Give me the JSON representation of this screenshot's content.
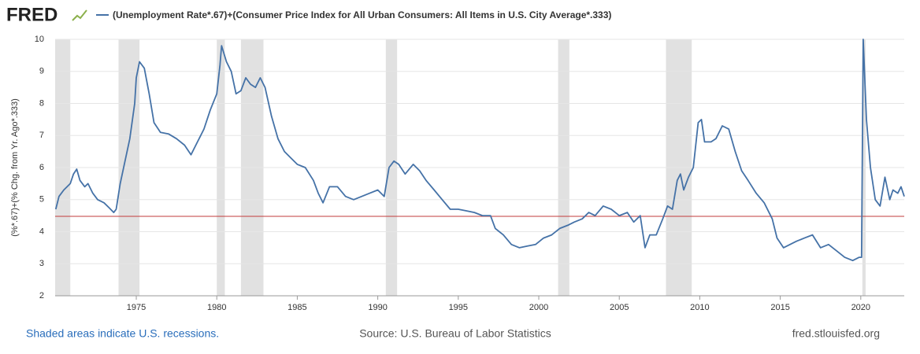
{
  "brand": "FRED",
  "chart_data": {
    "type": "line",
    "series": [
      {
        "name": "(Unemployment Rate*.67)+(Consumer Price Index for All Urban Consumers: All Items in U.S. City Average*.333)",
        "color": "#4572a7",
        "x": [
          1970.0,
          1970.2,
          1970.5,
          1970.9,
          1971.1,
          1971.3,
          1971.5,
          1971.8,
          1972.0,
          1972.3,
          1972.6,
          1973.0,
          1973.3,
          1973.6,
          1973.75,
          1974.0,
          1974.3,
          1974.6,
          1974.9,
          1975.0,
          1975.2,
          1975.5,
          1975.8,
          1976.1,
          1976.5,
          1977.0,
          1977.5,
          1978.0,
          1978.4,
          1978.8,
          1979.2,
          1979.6,
          1980.0,
          1980.2,
          1980.3,
          1980.6,
          1980.9,
          1981.2,
          1981.5,
          1981.8,
          1982.1,
          1982.4,
          1982.7,
          1983.0,
          1983.4,
          1983.8,
          1984.2,
          1984.6,
          1985.0,
          1985.5,
          1986.0,
          1986.3,
          1986.6,
          1987.0,
          1987.5,
          1988.0,
          1988.5,
          1989.0,
          1989.5,
          1990.0,
          1990.4,
          1990.7,
          1991.0,
          1991.3,
          1991.7,
          1992.2,
          1992.6,
          1993.0,
          1993.5,
          1994.0,
          1994.5,
          1995.0,
          1995.5,
          1996.0,
          1996.5,
          1997.0,
          1997.3,
          1997.8,
          1998.3,
          1998.8,
          1999.3,
          1999.8,
          2000.3,
          2000.8,
          2001.3,
          2001.8,
          2002.2,
          2002.7,
          2003.1,
          2003.5,
          2004.0,
          2004.5,
          2005.0,
          2005.5,
          2005.9,
          2006.3,
          2006.6,
          2006.9,
          2007.3,
          2007.7,
          2008.0,
          2008.3,
          2008.6,
          2008.8,
          2009.0,
          2009.3,
          2009.6,
          2009.9,
          2010.1,
          2010.3,
          2010.7,
          2011.0,
          2011.4,
          2011.8,
          2012.2,
          2012.6,
          2013.0,
          2013.5,
          2014.0,
          2014.5,
          2014.8,
          2015.2,
          2015.6,
          2016.0,
          2016.5,
          2017.0,
          2017.5,
          2018.0,
          2018.5,
          2019.0,
          2019.5,
          2019.9,
          2020.05,
          2020.15,
          2020.35,
          2020.6,
          2020.9,
          2021.2,
          2021.5,
          2021.8,
          2022.0,
          2022.3,
          2022.5,
          2022.7
        ],
        "values": [
          4.7,
          5.1,
          5.3,
          5.5,
          5.8,
          5.95,
          5.6,
          5.4,
          5.5,
          5.2,
          5.0,
          4.9,
          4.75,
          4.6,
          4.7,
          5.5,
          6.2,
          6.9,
          8.0,
          8.8,
          9.3,
          9.1,
          8.3,
          7.4,
          7.1,
          7.05,
          6.9,
          6.7,
          6.4,
          6.8,
          7.2,
          7.8,
          8.3,
          9.2,
          9.8,
          9.3,
          9.0,
          8.3,
          8.4,
          8.8,
          8.6,
          8.5,
          8.8,
          8.5,
          7.6,
          6.9,
          6.5,
          6.3,
          6.1,
          6.0,
          5.6,
          5.2,
          4.9,
          5.4,
          5.4,
          5.1,
          5.0,
          5.1,
          5.2,
          5.3,
          5.1,
          6.0,
          6.2,
          6.1,
          5.8,
          6.1,
          5.9,
          5.6,
          5.3,
          5.0,
          4.7,
          4.7,
          4.65,
          4.6,
          4.5,
          4.5,
          4.1,
          3.9,
          3.6,
          3.5,
          3.55,
          3.6,
          3.8,
          3.9,
          4.1,
          4.2,
          4.3,
          4.4,
          4.6,
          4.5,
          4.8,
          4.7,
          4.5,
          4.6,
          4.3,
          4.5,
          3.5,
          3.9,
          3.9,
          4.4,
          4.8,
          4.7,
          5.6,
          5.8,
          5.3,
          5.7,
          6.0,
          7.4,
          7.5,
          6.8,
          6.8,
          6.9,
          7.3,
          7.2,
          6.5,
          5.9,
          5.6,
          5.2,
          4.9,
          4.4,
          3.8,
          3.5,
          3.6,
          3.7,
          3.8,
          3.9,
          3.5,
          3.6,
          3.4,
          3.2,
          3.1,
          3.2,
          3.2,
          10.0,
          7.5,
          6.0,
          5.0,
          4.8,
          5.7,
          5.0,
          5.3,
          5.2,
          5.4,
          5.1
        ]
      }
    ],
    "recessions": [
      [
        1969.95,
        1970.9
      ],
      [
        1973.9,
        1975.2
      ],
      [
        1980.0,
        1980.5
      ],
      [
        1981.5,
        1982.9
      ],
      [
        1990.5,
        1991.2
      ],
      [
        2001.2,
        2001.9
      ],
      [
        2007.9,
        2009.5
      ],
      [
        2020.1,
        2020.3
      ]
    ],
    "recession_color": "#e1e1e1",
    "reference_line": {
      "value": 4.48,
      "color": "#c23b3b"
    },
    "ylabel": "(%*.67)+(% Chg. from Yr. Ago*.333)",
    "xlim": [
      1969.96,
      2022.7
    ],
    "xticks": [
      1975,
      1980,
      1985,
      1990,
      1995,
      2000,
      2005,
      2010,
      2015,
      2020
    ],
    "ylim": [
      2,
      10
    ],
    "yticks": [
      2,
      3,
      4,
      5,
      6,
      7,
      8,
      9,
      10
    ],
    "grid": true
  },
  "footer": {
    "note": "Shaded areas indicate U.S. recessions.",
    "source": "Source: U.S. Bureau of Labor Statistics",
    "site": "fred.stlouisfed.org"
  }
}
